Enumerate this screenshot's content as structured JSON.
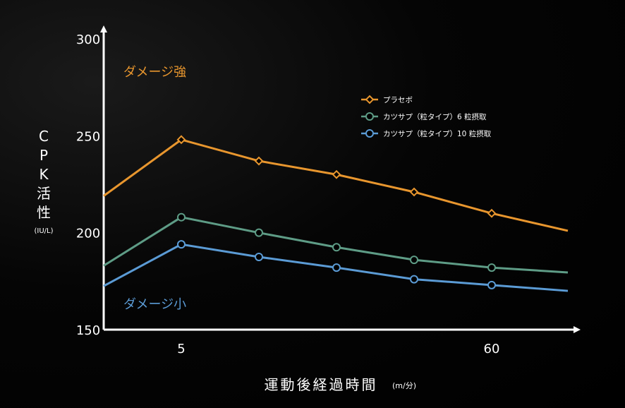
{
  "chart_data": {
    "type": "line",
    "title": "",
    "xlabel": "運動後経過時間",
    "xlabel_unit": "(m/分)",
    "ylabel_chars": [
      "C",
      "P",
      "K",
      "活",
      "性"
    ],
    "ylabel_unit": "(IU/L)",
    "ylim": [
      150,
      300
    ],
    "yticks": [
      150,
      200,
      250,
      300
    ],
    "xticks": [
      {
        "label": "5",
        "index": 1
      },
      {
        "label": "60",
        "index": 5
      }
    ],
    "x_points": 7,
    "grid": false,
    "legend_position": "top-right",
    "annotations": [
      {
        "text": "ダメージ強",
        "color": "#e8962e"
      },
      {
        "text": "ダメージ小",
        "color": "#5b9bd5"
      }
    ],
    "series": [
      {
        "name": "プラセボ",
        "color": "#e8962e",
        "marker": "diamond",
        "values": [
          219,
          248,
          237,
          230,
          221,
          210,
          201
        ]
      },
      {
        "name": "カツサプ（粒タイプ）6 粒摂取",
        "color": "#5e9c86",
        "marker": "circle",
        "values": [
          183,
          208,
          200,
          192.5,
          186,
          182,
          179.5
        ]
      },
      {
        "name": "カツサプ（粒タイプ）10 粒摂取",
        "color": "#5b9bd5",
        "marker": "circle",
        "values": [
          172.5,
          194,
          187.5,
          182,
          176,
          173,
          170
        ]
      }
    ]
  }
}
